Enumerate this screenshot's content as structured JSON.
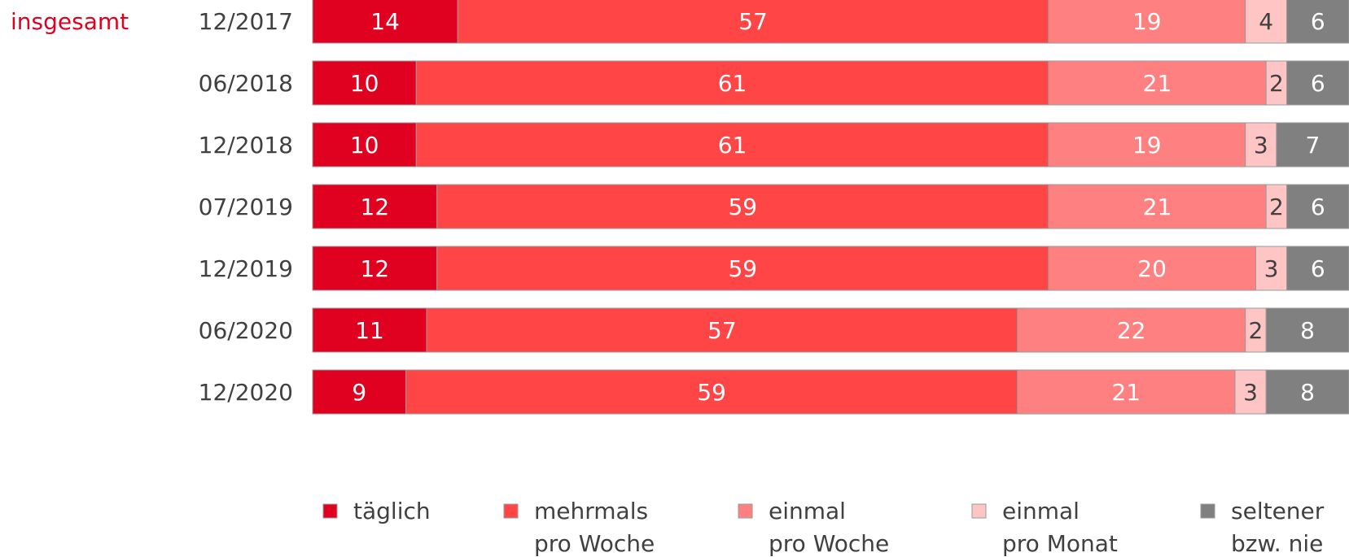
{
  "chart_data": {
    "type": "bar",
    "orientation": "horizontal",
    "stacked": true,
    "group_label": "insgesamt",
    "categories": [
      "12/2017",
      "06/2018",
      "12/2018",
      "07/2019",
      "12/2019",
      "06/2020",
      "12/2020"
    ],
    "series": [
      {
        "name": "täglich",
        "legend_lines": [
          "täglich"
        ],
        "color": "#e00020",
        "label_color": "#ffffff",
        "values": [
          14,
          10,
          10,
          12,
          12,
          11,
          9
        ]
      },
      {
        "name": "mehrmals pro Woche",
        "legend_lines": [
          "mehrmals",
          "pro Woche"
        ],
        "color": "#ff4545",
        "label_color": "#ffffff",
        "values": [
          57,
          61,
          61,
          59,
          59,
          57,
          59
        ]
      },
      {
        "name": "einmal pro Woche",
        "legend_lines": [
          "einmal",
          "pro Woche"
        ],
        "color": "#ff8080",
        "label_color": "#ffffff",
        "values": [
          19,
          21,
          19,
          21,
          20,
          22,
          21
        ]
      },
      {
        "name": "einmal pro Monat",
        "legend_lines": [
          "einmal",
          "pro Monat"
        ],
        "color": "#ffc4c4",
        "label_color": "#404040",
        "values": [
          4,
          2,
          3,
          2,
          3,
          2,
          3
        ]
      },
      {
        "name": "seltener bzw. nie",
        "legend_lines": [
          "seltener",
          "bzw. nie"
        ],
        "color": "#808080",
        "label_color": "#ffffff",
        "values": [
          6,
          6,
          7,
          6,
          6,
          8,
          8
        ]
      }
    ],
    "colors": {
      "group_label": "#e00020",
      "category_label": "#404040",
      "bar_border": "#9a9a9a"
    },
    "legend_position": "bottom",
    "grid": false
  }
}
